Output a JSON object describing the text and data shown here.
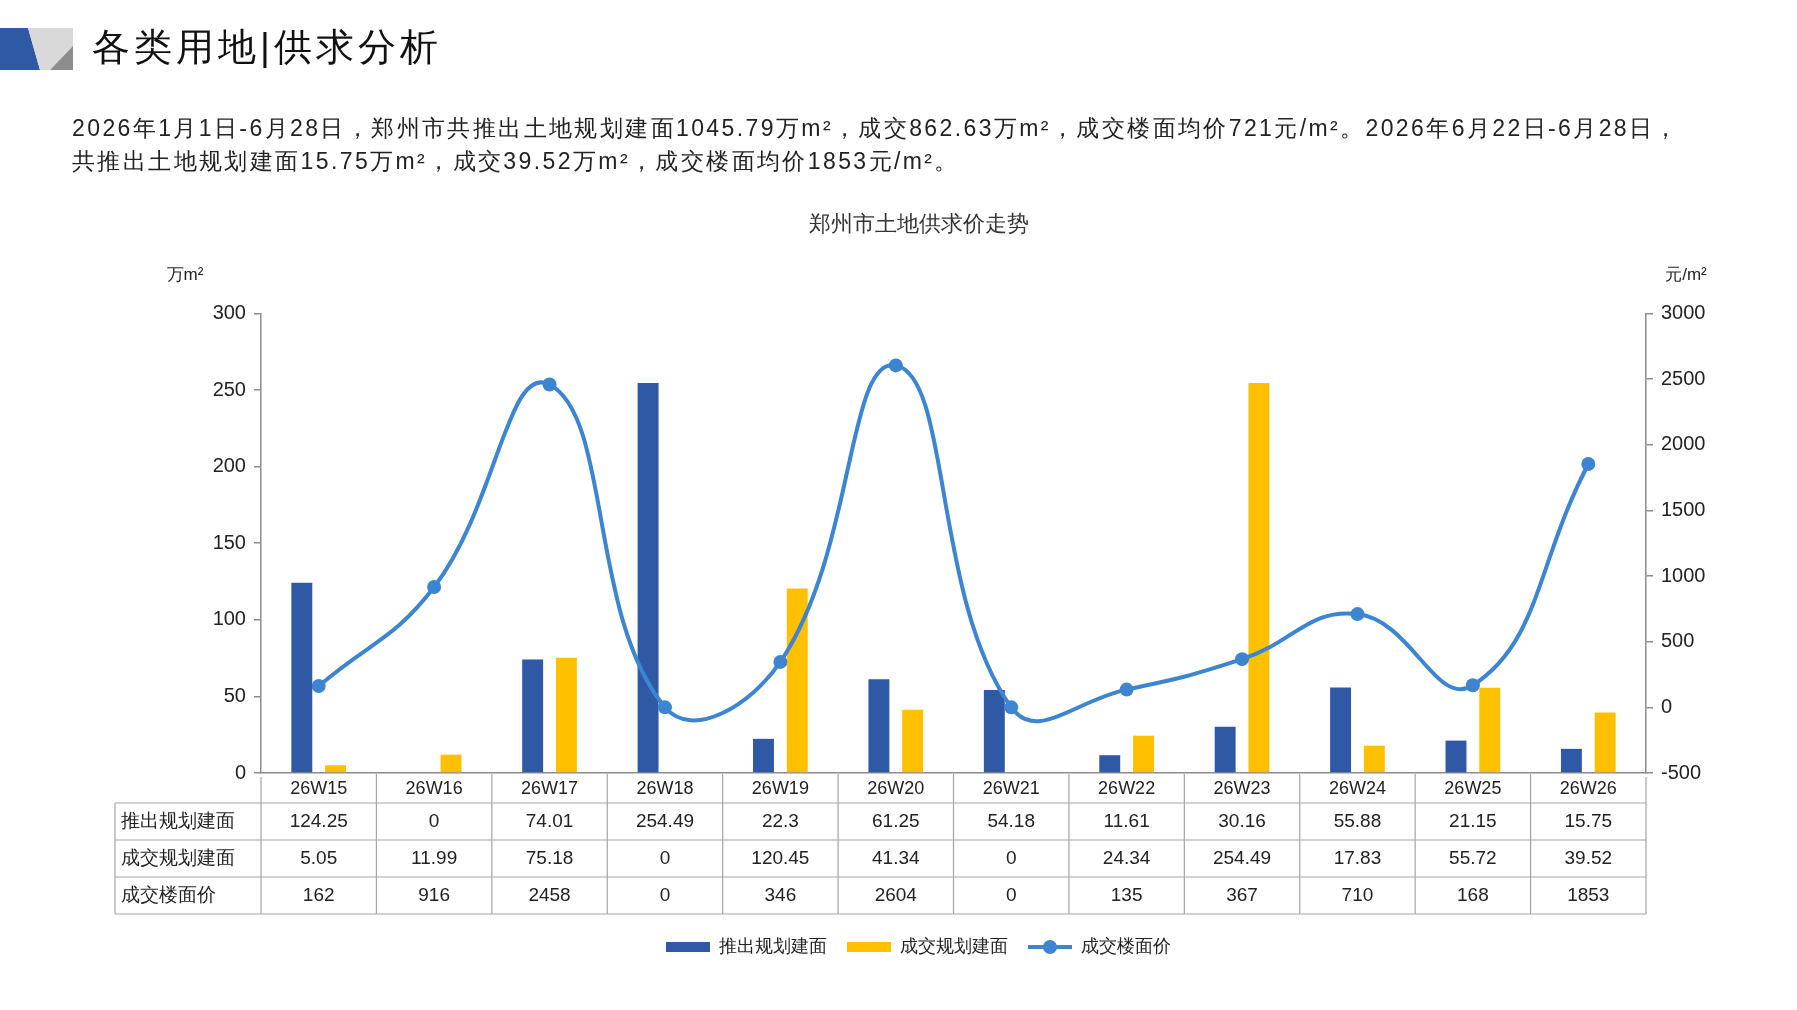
{
  "chart_data": {
    "type": "bar",
    "title": "各类用地|供求分析",
    "subtitle": "郑州市土地供求价走势",
    "annotations": [
      "2026年1月1日-6月28日，郑州市共推出土地规划建面1045.79万m²，成交862.63万m²，成交楼面均价721元/m²。2026年6月22日-6月28日，共推出土地规划建面15.75万m²，成交39.52万m²，成交楼面均价1853元/m²。"
    ],
    "ylabel": "万m²",
    "y2label": "元/m²",
    "categories": [
      "26W15",
      "26W16",
      "26W17",
      "26W18",
      "26W19",
      "26W20",
      "26W21",
      "26W22",
      "26W23",
      "26W24",
      "26W25",
      "26W26"
    ],
    "series": [
      {
        "name": "推出规划建面",
        "color": "#2f58a5",
        "values": [
          124.25,
          0,
          74.01,
          254.49,
          22.3,
          61.25,
          54.18,
          11.61,
          30.16,
          55.88,
          21.15,
          15.75
        ]
      },
      {
        "name": "成交规划建面",
        "color": "#ffc000",
        "values": [
          5.05,
          11.99,
          75.18,
          0,
          120.45,
          41.34,
          0,
          24.34,
          254.49,
          17.83,
          55.72,
          39.52
        ]
      },
      {
        "name": "成交楼面价",
        "type": "line",
        "axis": "y2",
        "color": "#3d85d0",
        "values": [
          162,
          916,
          2458,
          0,
          346,
          2604,
          0,
          135,
          367,
          710,
          168,
          1853
        ]
      }
    ],
    "ylim": [
      0,
      300
    ],
    "yticks": [
      0,
      50,
      100,
      150,
      200,
      250,
      300
    ],
    "y2lim": [
      -500,
      3000
    ],
    "y2ticks": [
      -500,
      0,
      500,
      1000,
      1500,
      2000,
      2500,
      3000
    ],
    "grid": false,
    "legend": "bottom",
    "marker": "circle",
    "data_labels": true
  }
}
